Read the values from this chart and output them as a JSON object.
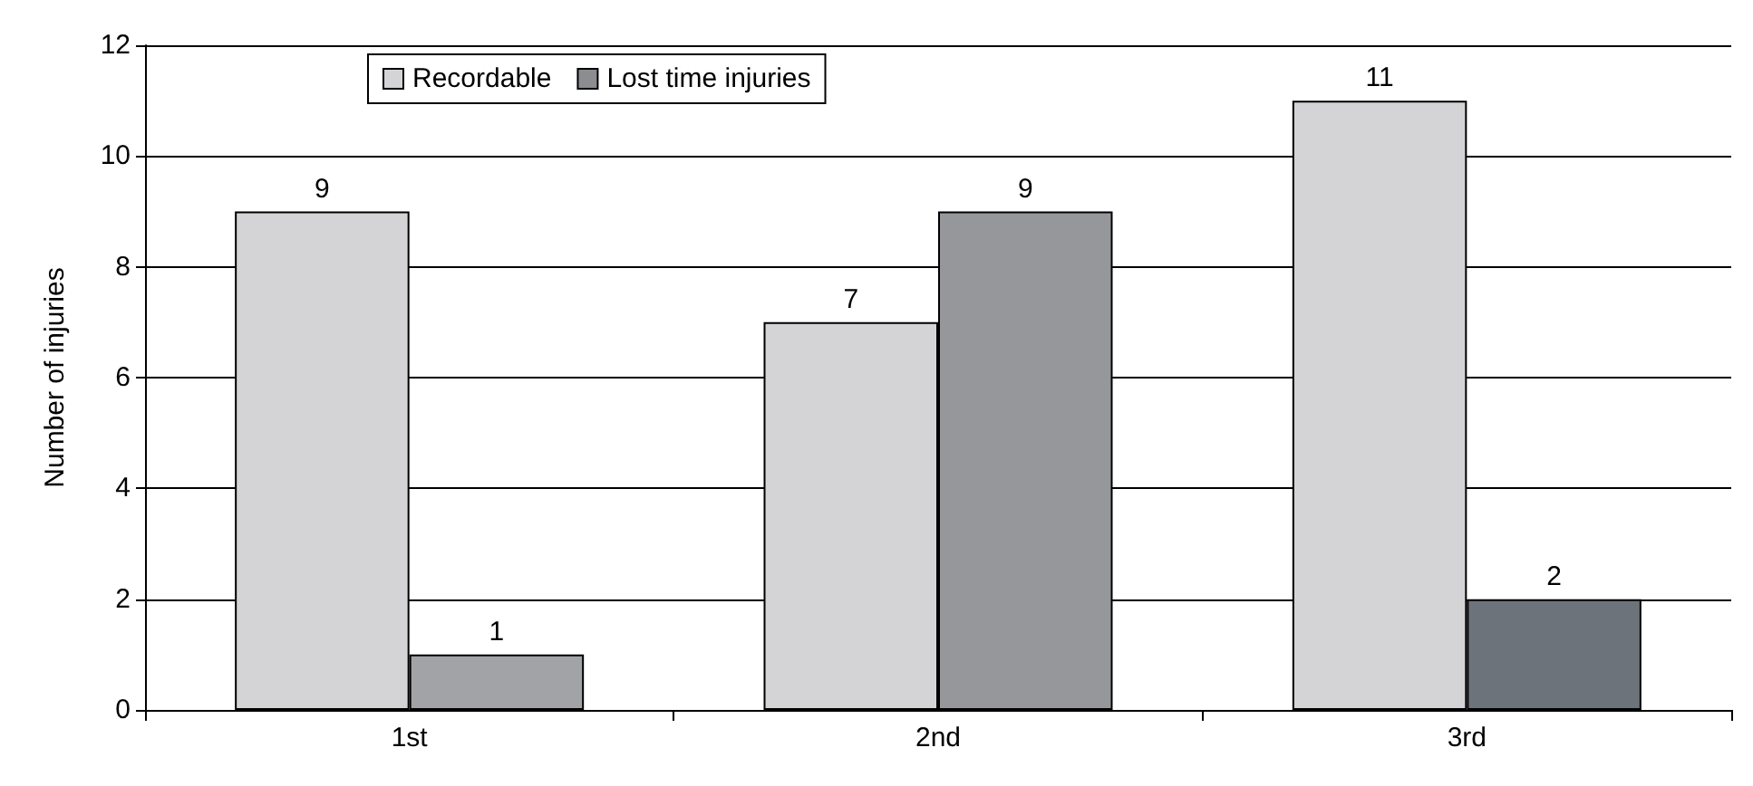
{
  "chart_data": {
    "type": "bar",
    "ylabel": "Number of injuries",
    "categories": [
      "1st",
      "2nd",
      "3rd"
    ],
    "series": [
      {
        "name": "Recordable",
        "color": "#d4d4d6",
        "values": [
          9,
          7,
          11
        ]
      },
      {
        "name": "Lost time injuries",
        "color": "#8c8d90",
        "colors": [
          "#a2a3a6",
          "#96979b",
          "#6d737a"
        ],
        "values": [
          1,
          9,
          2
        ]
      }
    ],
    "ylim": [
      0,
      12
    ],
    "yticks": [
      0,
      2,
      4,
      6,
      8,
      10,
      12
    ],
    "grid": "y",
    "legend": "top left",
    "data_labels": true
  }
}
